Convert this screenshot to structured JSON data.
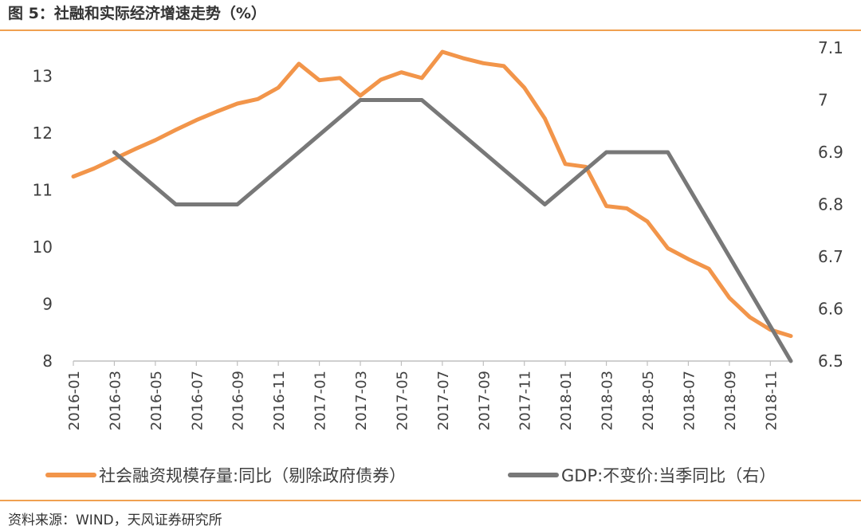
{
  "title": "图 5：社融和实际经济增速走势（%）",
  "source": "资料来源：WIND，天风证券研究所",
  "colors": {
    "accent": "#f0a050",
    "series1": "#f2954a",
    "series2": "#787878",
    "axis": "#bfbfbf",
    "text": "#404040"
  },
  "chart_data": {
    "type": "line",
    "title": "",
    "legend_position": "bottom",
    "grid": false,
    "x": [
      "2016-01",
      "2016-02",
      "2016-03",
      "2016-04",
      "2016-05",
      "2016-06",
      "2016-07",
      "2016-08",
      "2016-09",
      "2016-10",
      "2016-11",
      "2016-12",
      "2017-01",
      "2017-02",
      "2017-03",
      "2017-04",
      "2017-05",
      "2017-06",
      "2017-07",
      "2017-08",
      "2017-09",
      "2017-10",
      "2017-11",
      "2017-12",
      "2018-01",
      "2018-02",
      "2018-03",
      "2018-04",
      "2018-05",
      "2018-06",
      "2018-07",
      "2018-08",
      "2018-09",
      "2018-10",
      "2018-11",
      "2018-12"
    ],
    "x_tick_labels": [
      "2016-01",
      "2016-03",
      "2016-05",
      "2016-07",
      "2016-09",
      "2016-11",
      "2017-01",
      "2017-03",
      "2017-05",
      "2017-07",
      "2017-09",
      "2017-11",
      "2018-01",
      "2018-03",
      "2018-05",
      "2018-07",
      "2018-09",
      "2018-11"
    ],
    "y_left": {
      "min": 8,
      "max": 13.5,
      "ticks": [
        "8",
        "9",
        "10",
        "11",
        "12",
        "13"
      ]
    },
    "y_right": {
      "min": 6.5,
      "max": 7.1,
      "ticks": [
        "6.5",
        "6.6",
        "6.7",
        "6.8",
        "6.9",
        "7",
        "7.1"
      ]
    },
    "series": [
      {
        "name": "社会融资规模存量:同比（剔除政府债券）",
        "axis": "left",
        "color": "#f2954a",
        "values": [
          11.24,
          11.38,
          11.55,
          11.72,
          11.88,
          12.06,
          12.23,
          12.38,
          12.52,
          12.6,
          12.8,
          13.22,
          12.93,
          12.97,
          12.66,
          12.94,
          13.07,
          12.97,
          13.43,
          13.32,
          13.23,
          13.18,
          12.8,
          12.26,
          11.46,
          11.41,
          10.72,
          10.68,
          10.45,
          9.98,
          9.79,
          9.62,
          9.11,
          8.77,
          8.55,
          8.44
        ]
      },
      {
        "name": "GDP:不变价:当季同比（右）",
        "axis": "right",
        "color": "#787878",
        "x": [
          "2016-03",
          "2016-06",
          "2016-09",
          "2016-12",
          "2017-03",
          "2017-06",
          "2017-09",
          "2017-12",
          "2018-03",
          "2018-06",
          "2018-09",
          "2018-12"
        ],
        "values": [
          6.9,
          6.8,
          6.8,
          6.9,
          7.0,
          7.0,
          6.9,
          6.8,
          6.9,
          6.9,
          6.7,
          6.5
        ]
      }
    ]
  }
}
